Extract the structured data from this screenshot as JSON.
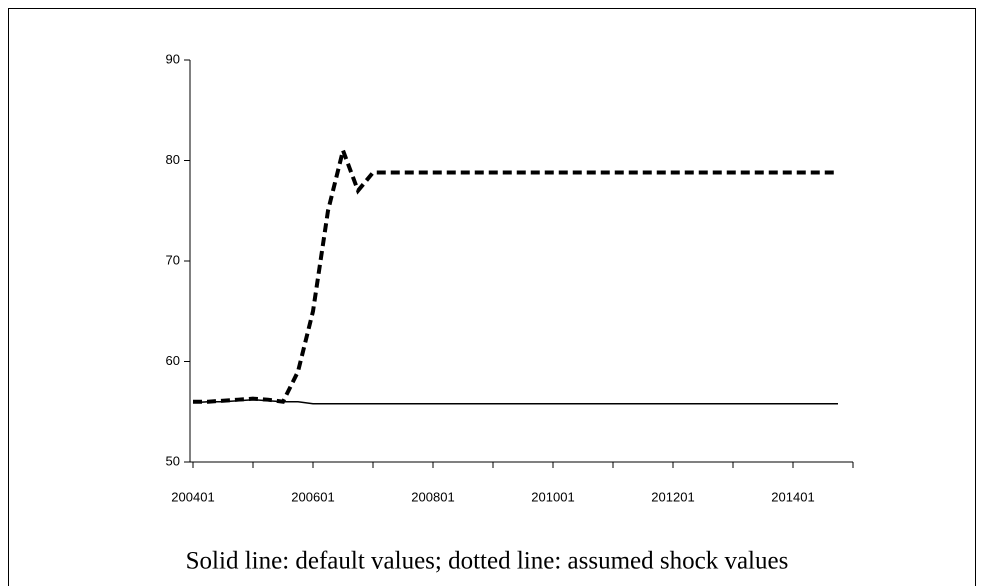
{
  "chart_data": {
    "type": "line",
    "caption": "Solid line: default values; dotted line: assumed shock values",
    "categories": [
      "200401",
      null,
      null,
      null,
      null,
      null,
      null,
      null,
      "200601",
      null,
      null,
      null,
      null,
      null,
      null,
      null,
      "200801",
      null,
      null,
      null,
      null,
      null,
      null,
      null,
      "201001",
      null,
      null,
      null,
      null,
      null,
      null,
      null,
      "201201",
      null,
      null,
      null,
      null,
      null,
      null,
      null,
      "201401",
      null,
      null,
      null
    ],
    "series": [
      {
        "color": "#000000",
        "style": "solid",
        "values": [
          55.9,
          56,
          56,
          56.1,
          56.2,
          56.1,
          56,
          56,
          55.8,
          55.8,
          55.8,
          55.8,
          55.8,
          55.8,
          55.8,
          55.8,
          55.8,
          55.8,
          55.8,
          55.8,
          55.8,
          55.8,
          55.8,
          55.8,
          55.8,
          55.8,
          55.8,
          55.8,
          55.8,
          55.8,
          55.8,
          55.8,
          55.8,
          55.8,
          55.8,
          55.8,
          55.8,
          55.8,
          55.8,
          55.8,
          55.8,
          55.8,
          55.8,
          55.8
        ]
      },
      {
        "color": "#000000",
        "style": "dashed",
        "values": [
          56,
          56,
          56.1,
          56.2,
          56.3,
          56.2,
          56,
          59,
          65,
          75,
          81,
          77,
          78.8,
          78.8,
          78.8,
          78.8,
          78.8,
          78.8,
          78.8,
          78.8,
          78.8,
          78.8,
          78.8,
          78.8,
          78.8,
          78.8,
          78.8,
          78.8,
          78.8,
          78.8,
          78.8,
          78.8,
          78.8,
          78.8,
          78.8,
          78.8,
          78.8,
          78.8,
          78.8,
          78.8,
          78.8,
          78.8,
          78.8,
          78.8
        ]
      }
    ],
    "ylim": [
      50,
      90
    ],
    "yticks": [
      50,
      60,
      70,
      80,
      90
    ],
    "grid": false
  }
}
